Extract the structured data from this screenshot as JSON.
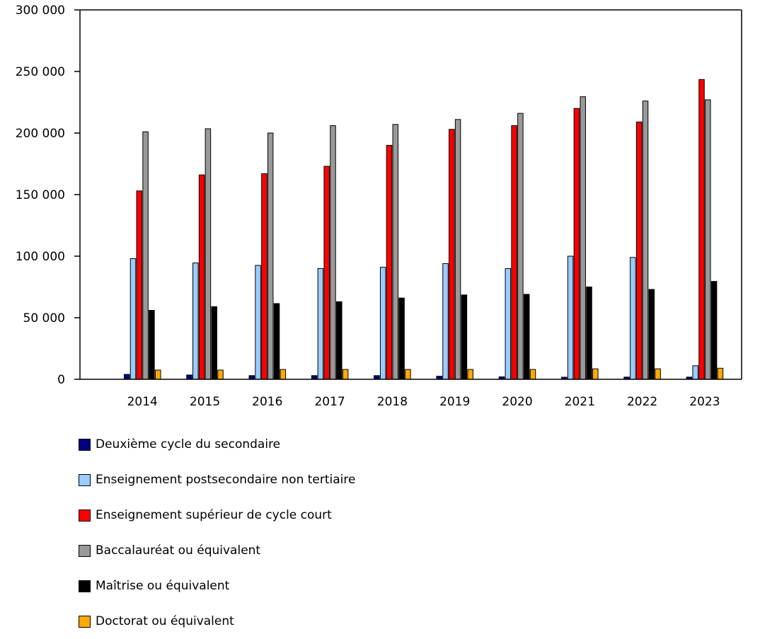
{
  "chart_data": {
    "type": "bar",
    "title": "",
    "xlabel": "",
    "ylabel": "",
    "ylim": [
      0,
      300000
    ],
    "yticks": [
      0,
      50000,
      100000,
      150000,
      200000,
      250000,
      300000
    ],
    "ytick_labels": [
      "0",
      "50 000",
      "100 000",
      "150 000",
      "200 000",
      "250 000",
      "300 000"
    ],
    "grid": false,
    "legend_position": "bottom",
    "categories": [
      "2014",
      "2015",
      "2016",
      "2017",
      "2018",
      "2019",
      "2020",
      "2021",
      "2022",
      "2023"
    ],
    "series": [
      {
        "name": "Deuxième cycle du secondaire",
        "color": "#000080",
        "values": [
          4000,
          3500,
          3000,
          3000,
          3000,
          2500,
          2000,
          1700,
          1800,
          1800
        ]
      },
      {
        "name": "Enseignement postsecondaire non tertiaire",
        "color": "#99ccff",
        "values": [
          98000,
          94500,
          92500,
          90000,
          91000,
          94000,
          90000,
          100000,
          99000,
          11000
        ]
      },
      {
        "name": "Enseignement supérieur de cycle court",
        "color": "#ff0000",
        "values": [
          153000,
          166000,
          167000,
          173000,
          190000,
          203000,
          206000,
          220000,
          209000,
          243500
        ]
      },
      {
        "name": "Baccalauréat ou équivalent",
        "color": "#999999",
        "values": [
          201000,
          203500,
          200000,
          206000,
          207000,
          211000,
          216000,
          229500,
          226000,
          227000
        ]
      },
      {
        "name": "Maîtrise ou équivalent",
        "color": "#000000",
        "values": [
          56000,
          59000,
          61500,
          63000,
          66000,
          68500,
          69000,
          75000,
          73000,
          79500
        ]
      },
      {
        "name": "Doctorat ou équivalent",
        "color": "#ffaa00",
        "values": [
          7500,
          7500,
          8000,
          8000,
          8000,
          8000,
          8000,
          8500,
          8500,
          9000
        ]
      }
    ]
  }
}
